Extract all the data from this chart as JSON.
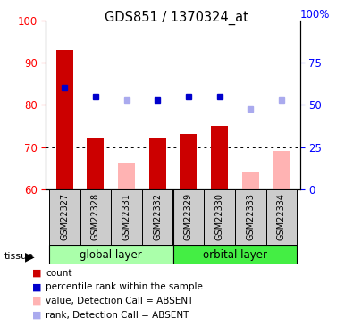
{
  "title": "GDS851 / 1370324_at",
  "samples": [
    "GSM22327",
    "GSM22328",
    "GSM22331",
    "GSM22332",
    "GSM22329",
    "GSM22330",
    "GSM22333",
    "GSM22334"
  ],
  "bar_values": [
    93,
    72,
    66,
    72,
    73,
    75,
    64,
    69
  ],
  "bar_absent": [
    false,
    false,
    true,
    false,
    false,
    false,
    true,
    true
  ],
  "rank_values": [
    84,
    82,
    81,
    81,
    82,
    82,
    79,
    81
  ],
  "rank_absent": [
    false,
    false,
    true,
    false,
    false,
    false,
    true,
    true
  ],
  "ylim": [
    60,
    100
  ],
  "yticks_left": [
    60,
    70,
    80,
    90,
    100
  ],
  "yticks_right": [
    0,
    25,
    50,
    75
  ],
  "right_ylim": [
    0,
    100
  ],
  "bar_color_present": "#cc0000",
  "bar_color_absent": "#ffb3b3",
  "rank_color_present": "#0000cc",
  "rank_color_absent": "#aaaaee",
  "group1_color": "#aaffaa",
  "group2_color": "#44ee44",
  "background_color": "#ffffff",
  "label_area_color": "#cccccc",
  "grid_dotted_at": [
    70,
    80,
    90
  ]
}
